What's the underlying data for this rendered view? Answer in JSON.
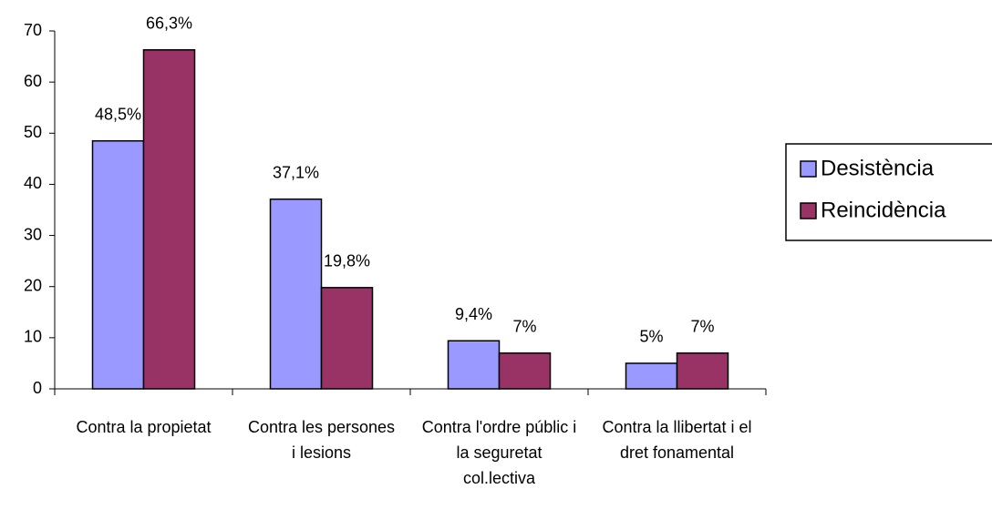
{
  "chart_data": {
    "type": "bar",
    "categories": [
      "Contra la propietat",
      "Contra les persones i lesions",
      "Contra l'ordre públic i la seguretat col.lectiva",
      "Contra la llibertat i el dret fonamental"
    ],
    "series": [
      {
        "name": "Desistència",
        "color": "#9999ff",
        "values": [
          48.5,
          37.1,
          9.4,
          5
        ],
        "value_labels": [
          "48,5%",
          "37,1%",
          "9,4%",
          "5%"
        ]
      },
      {
        "name": "Reincidència",
        "color": "#993366",
        "values": [
          66.3,
          19.8,
          7,
          7
        ],
        "value_labels": [
          "66,3%",
          "19,8%",
          "7%",
          "7%"
        ]
      }
    ],
    "ylim": [
      0,
      70
    ],
    "yticks": [
      0,
      10,
      20,
      30,
      40,
      50,
      60,
      70
    ],
    "grid": false,
    "legend": "right"
  }
}
